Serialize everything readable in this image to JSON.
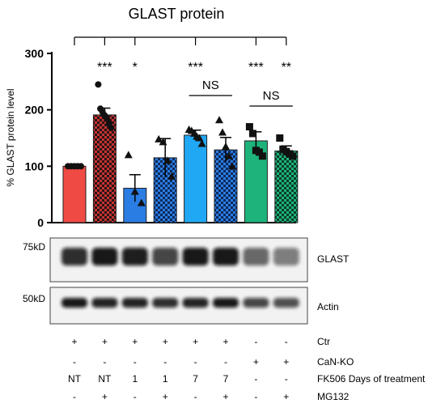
{
  "chart_data": {
    "type": "bar",
    "title": "GLAST protein",
    "ylabel": "% GLAST protein level",
    "ylim": [
      0,
      300
    ],
    "yticks": [
      0,
      100,
      200,
      300
    ],
    "categories": [
      "Ctr NT",
      "Ctr NT MG132",
      "Ctr FK506 1",
      "Ctr FK506 1 MG132",
      "Ctr FK506 7",
      "Ctr FK506 7 MG132",
      "CaN-KO",
      "CaN-KO MG132"
    ],
    "values": [
      100,
      191,
      61,
      115,
      155,
      129,
      145,
      127
    ],
    "errors": [
      1,
      12,
      24,
      34,
      9,
      22,
      16,
      9
    ],
    "bar_colors": [
      "#f04a44",
      "#c43333",
      "#2a7de3",
      "#2a7de3",
      "#21a8f4",
      "#2a7de3",
      "#1db37a",
      "#1db37a"
    ],
    "hatched": [
      false,
      true,
      false,
      true,
      false,
      true,
      false,
      true
    ],
    "points": [
      [
        100,
        100,
        100,
        100,
        100
      ],
      [
        245,
        202,
        196,
        190,
        185,
        176,
        168
      ],
      [
        120,
        55,
        35
      ],
      [
        148,
        143,
        110,
        82
      ],
      [
        165,
        163,
        158,
        153,
        150,
        140
      ],
      [
        182,
        160,
        135,
        118,
        100
      ],
      [
        170,
        158,
        128,
        125,
        118
      ],
      [
        150,
        130,
        126,
        122,
        118
      ]
    ],
    "marker_shapes": [
      "circle",
      "circle",
      "triangle",
      "triangle",
      "triangle",
      "triangle",
      "square",
      "square"
    ],
    "significance": [
      "",
      "***",
      "*",
      "",
      "***",
      "",
      "***",
      "**"
    ],
    "ns_brackets": [
      {
        "from": 4,
        "to": 5,
        "label": "NS"
      },
      {
        "from": 6,
        "to": 7,
        "label": "NS"
      }
    ],
    "grid": false,
    "legend": "none"
  },
  "blots": [
    {
      "marker": "75kD",
      "label": "GLAST"
    },
    {
      "marker": "50kD",
      "label": "Actin"
    }
  ],
  "conditions": [
    {
      "label": "Ctr",
      "values": [
        "+",
        "+",
        "+",
        "+",
        "+",
        "+",
        "-",
        "-"
      ]
    },
    {
      "label": "CaN-KO",
      "values": [
        "-",
        "-",
        "-",
        "-",
        "-",
        "-",
        "+",
        "+"
      ]
    },
    {
      "label": "FK506 Days of treatment",
      "values": [
        "NT",
        "NT",
        "1",
        "1",
        "7",
        "7",
        "-",
        "-"
      ]
    },
    {
      "label": "MG132",
      "values": [
        "-",
        "+",
        "-",
        "+",
        "-",
        "+",
        "-",
        "+"
      ]
    }
  ]
}
